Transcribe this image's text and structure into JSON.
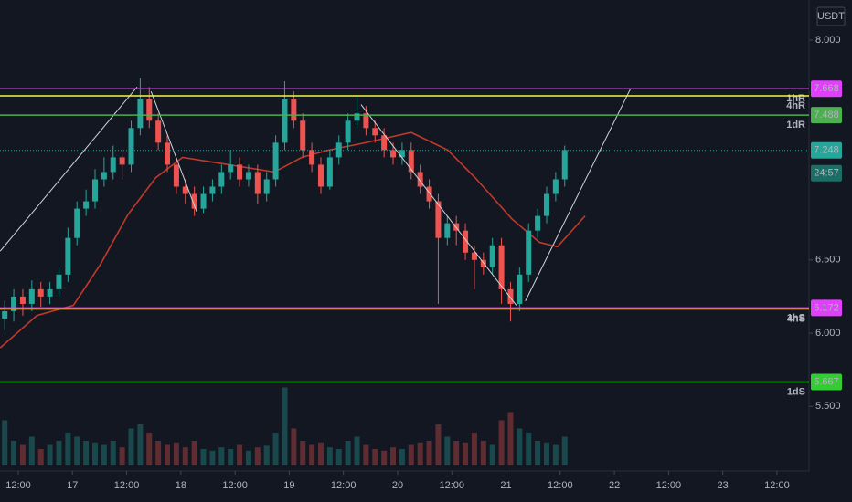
{
  "chart_data": {
    "type": "candlestick",
    "currency": "USDT",
    "x": [
      9,
      11,
      13,
      15,
      17,
      19,
      21,
      23,
      25,
      27,
      29,
      31,
      33,
      35,
      37,
      39,
      41,
      43,
      45,
      47,
      49,
      51,
      53,
      55,
      57,
      59,
      61,
      63,
      65,
      67,
      69,
      71,
      73,
      75,
      77,
      79,
      81,
      83,
      85,
      87,
      89,
      91,
      93,
      95,
      97,
      99,
      101,
      103,
      105,
      107,
      109,
      111,
      113,
      115,
      117,
      119,
      121,
      123,
      125,
      127,
      129,
      131,
      133
    ],
    "opens": [
      6.1,
      6.15,
      6.25,
      6.2,
      6.3,
      6.25,
      6.3,
      6.4,
      6.65,
      6.85,
      6.9,
      7.05,
      7.1,
      7.2,
      7.15,
      7.4,
      7.6,
      7.45,
      7.3,
      7.15,
      7.0,
      6.95,
      6.85,
      6.95,
      7.0,
      7.1,
      7.15,
      7.05,
      7.1,
      6.95,
      7.05,
      7.3,
      7.6,
      7.45,
      7.25,
      7.15,
      7.0,
      7.2,
      7.3,
      7.45,
      7.5,
      7.4,
      7.35,
      7.25,
      7.2,
      7.25,
      7.1,
      7.0,
      6.9,
      6.65,
      6.75,
      6.7,
      6.55,
      6.5,
      6.45,
      6.6,
      6.3,
      6.2,
      6.4,
      6.7,
      6.8,
      6.95,
      7.05
    ],
    "highs": [
      6.22,
      6.3,
      6.3,
      6.36,
      6.35,
      6.35,
      6.45,
      6.72,
      6.9,
      6.98,
      7.12,
      7.2,
      7.28,
      7.25,
      7.45,
      7.74,
      7.68,
      7.5,
      7.35,
      7.2,
      7.05,
      7.0,
      7.0,
      7.05,
      7.15,
      7.25,
      7.2,
      7.15,
      7.15,
      7.1,
      7.35,
      7.72,
      7.65,
      7.5,
      7.3,
      7.2,
      7.25,
      7.35,
      7.5,
      7.62,
      7.55,
      7.45,
      7.4,
      7.3,
      7.3,
      7.3,
      7.15,
      7.05,
      6.95,
      6.8,
      6.8,
      6.75,
      6.6,
      6.55,
      6.65,
      6.65,
      6.35,
      6.45,
      6.75,
      6.85,
      7.0,
      7.1,
      7.28
    ],
    "lows": [
      6.02,
      6.08,
      6.12,
      6.15,
      6.18,
      6.2,
      6.25,
      6.35,
      6.6,
      6.8,
      6.85,
      7.0,
      7.05,
      7.05,
      7.1,
      7.35,
      7.4,
      7.25,
      7.1,
      6.95,
      6.88,
      6.8,
      6.82,
      6.9,
      6.95,
      7.05,
      7.0,
      7.0,
      6.88,
      6.9,
      7.0,
      7.25,
      7.4,
      7.2,
      7.1,
      6.95,
      6.98,
      7.15,
      7.25,
      7.4,
      7.35,
      7.3,
      7.2,
      7.15,
      7.15,
      7.05,
      6.95,
      6.85,
      6.2,
      6.6,
      6.6,
      6.5,
      6.3,
      6.4,
      6.4,
      6.2,
      6.08,
      6.15,
      6.35,
      6.65,
      6.75,
      6.9,
      7.0
    ],
    "closes": [
      6.15,
      6.25,
      6.2,
      6.3,
      6.25,
      6.3,
      6.4,
      6.65,
      6.85,
      6.9,
      7.05,
      7.1,
      7.2,
      7.15,
      7.4,
      7.6,
      7.45,
      7.3,
      7.15,
      7.0,
      6.95,
      6.85,
      6.95,
      7.0,
      7.1,
      7.15,
      7.05,
      7.1,
      6.95,
      7.05,
      7.3,
      7.6,
      7.45,
      7.25,
      7.15,
      7.0,
      7.2,
      7.3,
      7.45,
      7.5,
      7.4,
      7.35,
      7.25,
      7.2,
      7.25,
      7.1,
      7.0,
      6.9,
      6.65,
      6.75,
      6.7,
      6.55,
      6.5,
      6.45,
      6.6,
      6.3,
      6.2,
      6.4,
      6.7,
      6.8,
      6.95,
      7.05,
      7.25
    ],
    "volumes": [
      55,
      30,
      25,
      35,
      20,
      25,
      30,
      40,
      35,
      30,
      28,
      25,
      30,
      22,
      45,
      50,
      40,
      30,
      25,
      28,
      22,
      30,
      20,
      18,
      22,
      20,
      25,
      18,
      22,
      24,
      40,
      95,
      45,
      30,
      25,
      28,
      22,
      20,
      30,
      35,
      25,
      20,
      18,
      22,
      20,
      25,
      28,
      30,
      50,
      35,
      30,
      28,
      40,
      30,
      25,
      55,
      65,
      45,
      40,
      30,
      28,
      25,
      35
    ],
    "vlim": [
      0,
      100
    ],
    "up_color": "#26a69a",
    "down_color": "#ef5350",
    "ma": {
      "color": "#c0392b",
      "x": [
        8.0,
        16.1,
        24.2,
        30.2,
        36.3,
        42.4,
        48.4,
        58.6,
        68.7,
        74.8,
        80.8,
        88.9,
        99.0,
        107.1,
        113.2,
        121.3,
        127.4,
        131.4,
        137.5
      ],
      "values": [
        5.9,
        6.12,
        6.19,
        6.47,
        6.81,
        7.06,
        7.2,
        7.15,
        7.1,
        7.2,
        7.25,
        7.3,
        7.37,
        7.25,
        7.06,
        6.78,
        6.62,
        6.59,
        6.8
      ]
    },
    "trendlines": [
      {
        "x": [
          8.0,
          38.3
        ],
        "values": [
          6.56,
          7.68
        ]
      },
      {
        "x": [
          41.4,
          51.5
        ],
        "values": [
          7.65,
          6.83
        ]
      },
      {
        "x": [
          87.9,
          122.3
        ],
        "values": [
          7.56,
          6.19
        ]
      },
      {
        "x": [
          124.3,
          147.6
        ],
        "values": [
          6.22,
          7.67
        ]
      }
    ],
    "levels": [
      {
        "price": 7.668,
        "color": "#e040fb",
        "tag": "1hR",
        "price_label": true
      },
      {
        "price": 7.62,
        "color": "#f5f542",
        "tag": "4hR",
        "price_label": false
      },
      {
        "price": 7.488,
        "color": "#4caf50",
        "tag": "1dR",
        "price_label": true
      },
      {
        "price": 6.172,
        "color": "#e040fb",
        "tag": "1hS",
        "price_label": true
      },
      {
        "price": 6.165,
        "color": "#ffb74d",
        "tag": "4hS",
        "price_label": false
      },
      {
        "price": 5.667,
        "color": "#33cc33",
        "tag": "1dS",
        "price_label": true
      }
    ],
    "last_price": 7.248,
    "countdown": "24:57",
    "xlim": [
      7.95,
      187.1
    ],
    "ylim": [
      5.097,
      8.274
    ],
    "xticks": [
      {
        "value": 12,
        "label": "12:00"
      },
      {
        "value": 24,
        "label": "17"
      },
      {
        "value": 36,
        "label": "12:00"
      },
      {
        "value": 48,
        "label": "18"
      },
      {
        "value": 60,
        "label": "12:00"
      },
      {
        "value": 72,
        "label": "19"
      },
      {
        "value": 84,
        "label": "12:00"
      },
      {
        "value": 96,
        "label": "20"
      },
      {
        "value": 108,
        "label": "12:00"
      },
      {
        "value": 120,
        "label": "21"
      },
      {
        "value": 132,
        "label": "12:00"
      },
      {
        "value": 144,
        "label": "22"
      },
      {
        "value": 156,
        "label": "12:00"
      },
      {
        "value": 168,
        "label": "23"
      },
      {
        "value": 180,
        "label": "12:00"
      }
    ],
    "yticks": [
      {
        "value": 8.0,
        "label": "8.000"
      },
      {
        "value": 6.5,
        "label": "6.500"
      },
      {
        "value": 6.0,
        "label": "6.000"
      },
      {
        "value": 5.5,
        "label": "5.500"
      }
    ],
    "grid": false
  }
}
